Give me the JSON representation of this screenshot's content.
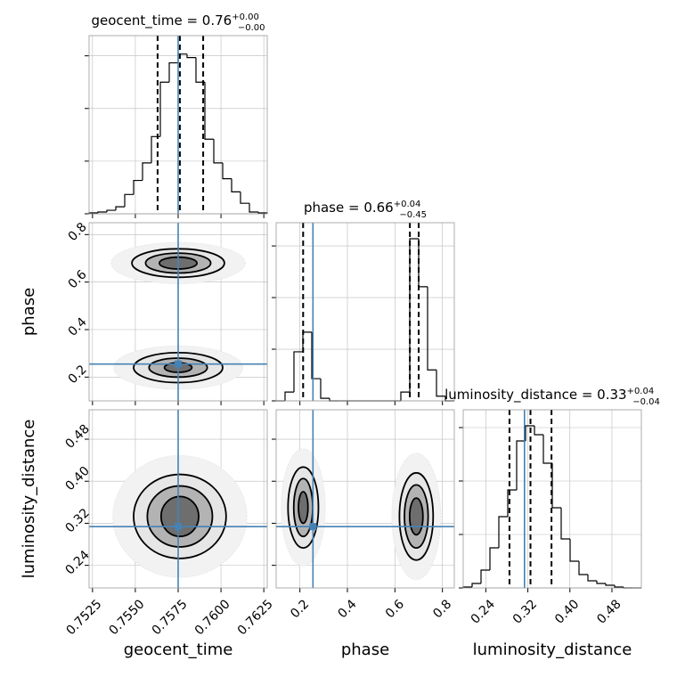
{
  "chart_data": {
    "type": "corner",
    "truth_color": "#4682b4",
    "params": [
      {
        "name": "geocent_time",
        "title": "geocent_time = 0.76",
        "upper": "+0.00",
        "lower": "−0.00",
        "lim": [
          0.7523,
          0.7627
        ],
        "ticks": [
          {
            "value": 0.7525,
            "label": "0.7525"
          },
          {
            "value": 0.755,
            "label": "0.7550"
          },
          {
            "value": 0.7575,
            "label": "0.7575"
          },
          {
            "value": 0.76,
            "label": "0.7600"
          },
          {
            "value": 0.7625,
            "label": "0.7625"
          }
        ],
        "bins": [
          0.7523,
          0.75282,
          0.75334,
          0.75386,
          0.75438,
          0.7549,
          0.75542,
          0.75594,
          0.75646,
          0.75698,
          0.7575,
          0.75802,
          0.75854,
          0.75906,
          0.75958,
          0.7601,
          0.76062,
          0.76114,
          0.76166,
          0.76218,
          0.7627
        ],
        "counts": [
          1,
          2,
          4,
          8,
          22,
          38,
          58,
          88,
          150,
          172,
          182,
          178,
          150,
          85,
          58,
          40,
          25,
          12,
          2,
          1
        ],
        "hist_ylim": [
          0,
          203
        ],
        "hist_yticks": [
          0,
          60,
          120,
          180
        ],
        "quantiles": [
          0.7563,
          0.7576,
          0.75896
        ],
        "truth": 0.7575
      },
      {
        "name": "phase",
        "title": "phase = 0.66",
        "upper": "+0.04",
        "lower": "−0.45",
        "lim": [
          0.1,
          0.85
        ],
        "ticks": [
          0.2,
          0.4,
          0.6,
          0.8
        ],
        "bins": [
          0.1,
          0.1375,
          0.175,
          0.2125,
          0.25,
          0.2875,
          0.325,
          0.3625,
          0.4,
          0.4375,
          0.475,
          0.5125,
          0.55,
          0.5875,
          0.625,
          0.6625,
          0.7,
          0.7375,
          0.775,
          0.8125,
          0.85
        ],
        "counts": [
          0,
          17,
          95,
          133,
          43,
          5,
          0,
          0,
          0,
          0,
          0,
          0,
          0,
          0,
          17,
          314,
          221,
          60,
          9,
          0
        ],
        "hist_ylim": [
          0,
          345
        ],
        "hist_yticks": [
          0,
          100,
          200,
          300
        ],
        "quantiles": [
          0.2136,
          0.663,
          0.7
        ],
        "truth": 0.255
      },
      {
        "name": "luminosity_distance",
        "title": "luminosity_distance = 0.33",
        "upper": "+0.04",
        "lower": "−0.04",
        "lim": [
          0.197,
          0.536
        ],
        "ticks": [
          0.24,
          0.32,
          {
            "value": 0.4,
            "label": "0.40"
          },
          0.48
        ],
        "bins": [
          0.197,
          0.21395,
          0.2309,
          0.24785,
          0.2648,
          0.28175,
          0.2987,
          0.31565,
          0.3326,
          0.34955,
          0.3665,
          0.38345,
          0.4004,
          0.41735,
          0.4343,
          0.45125,
          0.4682,
          0.48515,
          0.5021,
          0.51905,
          0.536
        ],
        "counts": [
          1,
          5,
          20,
          45,
          80,
          110,
          165,
          182,
          172,
          140,
          90,
          55,
          30,
          15,
          8,
          5,
          3,
          1,
          0,
          0
        ],
        "hist_ylim": [
          0,
          200
        ],
        "hist_yticks": [
          0,
          60,
          120,
          180
        ],
        "quantiles": [
          0.285,
          0.325,
          0.365
        ],
        "truth": 0.3136
      }
    ],
    "pairs": [
      {
        "x": 0,
        "y": 1,
        "blobs": [
          {
            "x": 0.7575,
            "y": 0.68,
            "levels": [
              [
                0.0027,
                0.06
              ],
              [
                0.0019,
                0.042
              ],
              [
                0.0011,
                0.025
              ]
            ]
          },
          {
            "x": 0.7575,
            "y": 0.24,
            "levels": [
              [
                0.0026,
                0.063
              ],
              [
                0.0017,
                0.04
              ],
              [
                0.0008,
                0.02
              ]
            ]
          }
        ]
      },
      {
        "x": 0,
        "y": 2,
        "blobs": [
          {
            "x": 0.7576,
            "y": 0.333,
            "levels": [
              [
                0.0027,
                0.08
              ],
              [
                0.0019,
                0.058
              ],
              [
                0.0011,
                0.038
              ]
            ]
          }
        ]
      },
      {
        "x": 1,
        "y": 2,
        "blobs": [
          {
            "x": 0.214,
            "y": 0.35,
            "levels": [
              [
                0.064,
                0.077
              ],
              [
                0.04,
                0.055
              ],
              [
                0.02,
                0.03
              ]
            ]
          },
          {
            "x": 0.69,
            "y": 0.333,
            "levels": [
              [
                0.071,
                0.083
              ],
              [
                0.05,
                0.06
              ],
              [
                0.028,
                0.035
              ]
            ]
          }
        ]
      }
    ]
  }
}
